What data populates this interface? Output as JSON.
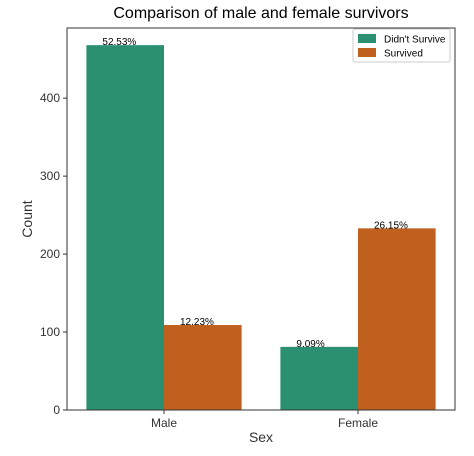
{
  "chart_data": {
    "type": "bar",
    "title": "Comparison of male and female survivors",
    "xlabel": "Sex",
    "ylabel": "Count",
    "categories": [
      "Male",
      "Female"
    ],
    "yticks": [
      0,
      100,
      200,
      300,
      400
    ],
    "ylim": [
      0,
      490
    ],
    "grid": false,
    "legend_placement": "top-right",
    "series": [
      {
        "name": "Didn't Survive",
        "color": "#2b8f72",
        "values": [
          468,
          81
        ],
        "labels": [
          "52.53%",
          "9.09%"
        ]
      },
      {
        "name": "Survived",
        "color": "#bf601f",
        "values": [
          109,
          233
        ],
        "labels": [
          "12.23%",
          "26.15%"
        ]
      }
    ]
  }
}
